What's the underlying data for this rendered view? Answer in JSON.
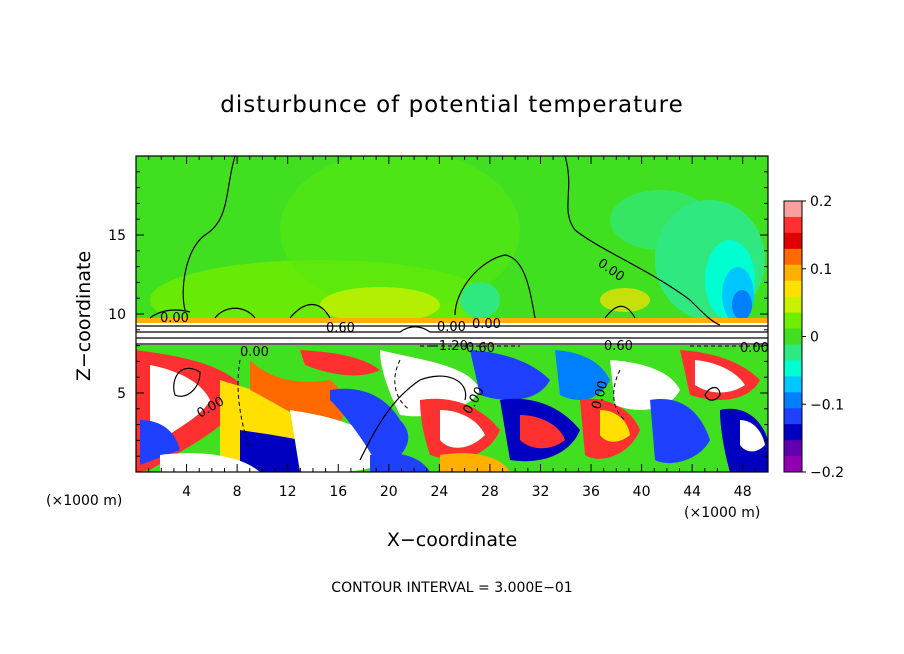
{
  "chart_data": {
    "type": "heatmap",
    "title": "disturbunce of potential temperature",
    "xlabel": "X−coordinate",
    "ylabel": "Z−coordinate",
    "x_unit_left": "(×1000 m)",
    "x_unit_right": "(×1000 m)",
    "footer": "CONTOUR INTERVAL = 3.000E−01",
    "xlim": [
      0,
      50
    ],
    "ylim": [
      0,
      20
    ],
    "x_ticks": [
      4,
      8,
      12,
      16,
      20,
      24,
      28,
      32,
      36,
      40,
      44,
      48
    ],
    "y_ticks": [
      5,
      10,
      15
    ],
    "colorbar": {
      "min": -0.2,
      "max": 0.2,
      "tick_values": [
        0.2,
        0.1,
        0,
        -0.1,
        -0.2
      ],
      "tick_labels": [
        "0.2",
        "0.1",
        "0",
        "−0.1",
        "−0.2"
      ],
      "colors": [
        "#f8a0a0",
        "#ff3030",
        "#e00000",
        "#ff6a00",
        "#ffb000",
        "#ffe000",
        "#c8f000",
        "#70ee00",
        "#40e020",
        "#30e880",
        "#00ffd0",
        "#00c8ff",
        "#0080ff",
        "#2040ff",
        "#0000c0",
        "#6000b0",
        "#9000b0"
      ]
    },
    "contour_labels": [
      "0.00",
      "0.00",
      "0.60",
      "0.00",
      "0.00",
      "−1.20",
      "0.60",
      "0.00",
      "0.60",
      "0.00",
      "0.00",
      "0.00",
      "0.00"
    ]
  }
}
